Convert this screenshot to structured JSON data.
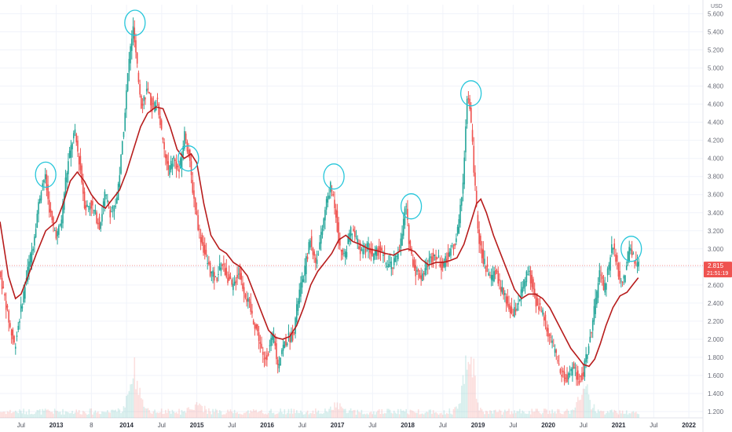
{
  "chart_data": {
    "type": "candlestick",
    "currency": "USD",
    "current_price": "2.815",
    "countdown": "21:51:19",
    "ylim": [
      1.2,
      5.7
    ],
    "xlim": [
      2012.2,
      2022.2
    ],
    "y_ticks": [
      {
        "v": 1.2,
        "label": "1.200"
      },
      {
        "v": 1.4,
        "label": "1.400"
      },
      {
        "v": 1.6,
        "label": "1.600"
      },
      {
        "v": 1.8,
        "label": "1.800"
      },
      {
        "v": 2.0,
        "label": "2.000"
      },
      {
        "v": 2.2,
        "label": "2.200"
      },
      {
        "v": 2.4,
        "label": "2.400"
      },
      {
        "v": 2.6,
        "label": "2.600"
      },
      {
        "v": 2.8,
        "label": "2.800"
      },
      {
        "v": 3.0,
        "label": "3.000"
      },
      {
        "v": 3.2,
        "label": "3.200"
      },
      {
        "v": 3.4,
        "label": "3.400"
      },
      {
        "v": 3.6,
        "label": "3.600"
      },
      {
        "v": 3.8,
        "label": "3.800"
      },
      {
        "v": 4.0,
        "label": "4.000"
      },
      {
        "v": 4.2,
        "label": "4.200"
      },
      {
        "v": 4.4,
        "label": "4.400"
      },
      {
        "v": 4.6,
        "label": "4.600"
      },
      {
        "v": 4.8,
        "label": "4.800"
      },
      {
        "v": 5.0,
        "label": "5.000"
      },
      {
        "v": 5.2,
        "label": "5.200"
      },
      {
        "v": 5.4,
        "label": "5.400"
      },
      {
        "v": 5.6,
        "label": "5.600"
      }
    ],
    "x_ticks": [
      {
        "t": 2012.5,
        "label": "Jul",
        "major": false
      },
      {
        "t": 2013.0,
        "label": "2013",
        "major": true
      },
      {
        "t": 2013.5,
        "label": "8",
        "major": false
      },
      {
        "t": 2014.0,
        "label": "2014",
        "major": true
      },
      {
        "t": 2014.5,
        "label": "Jul",
        "major": false
      },
      {
        "t": 2015.0,
        "label": "2015",
        "major": true
      },
      {
        "t": 2015.5,
        "label": "Jul",
        "major": false
      },
      {
        "t": 2016.0,
        "label": "2016",
        "major": true
      },
      {
        "t": 2016.5,
        "label": "Jul",
        "major": false
      },
      {
        "t": 2017.0,
        "label": "2017",
        "major": true
      },
      {
        "t": 2017.5,
        "label": "Jul",
        "major": false
      },
      {
        "t": 2018.0,
        "label": "2018",
        "major": true
      },
      {
        "t": 2018.5,
        "label": "Jul",
        "major": false
      },
      {
        "t": 2019.0,
        "label": "2019",
        "major": true
      },
      {
        "t": 2019.5,
        "label": "Jul",
        "major": false
      },
      {
        "t": 2020.0,
        "label": "2020",
        "major": true
      },
      {
        "t": 2020.5,
        "label": "Jul",
        "major": false
      },
      {
        "t": 2021.0,
        "label": "2021",
        "major": true
      },
      {
        "t": 2021.5,
        "label": "Jul",
        "major": false
      },
      {
        "t": 2022.0,
        "label": "2022",
        "major": true
      }
    ],
    "price_path": [
      [
        2012.2,
        2.75
      ],
      [
        2012.28,
        2.45
      ],
      [
        2012.36,
        2.1
      ],
      [
        2012.42,
        1.92
      ],
      [
        2012.5,
        2.3
      ],
      [
        2012.6,
        2.75
      ],
      [
        2012.68,
        3.05
      ],
      [
        2012.74,
        3.4
      ],
      [
        2012.8,
        3.7
      ],
      [
        2012.85,
        3.8
      ],
      [
        2012.9,
        3.5
      ],
      [
        2012.96,
        3.25
      ],
      [
        2013.02,
        3.15
      ],
      [
        2013.08,
        3.3
      ],
      [
        2013.14,
        3.75
      ],
      [
        2013.2,
        4.05
      ],
      [
        2013.27,
        4.3
      ],
      [
        2013.35,
        3.9
      ],
      [
        2013.42,
        3.45
      ],
      [
        2013.5,
        3.5
      ],
      [
        2013.58,
        3.35
      ],
      [
        2013.63,
        3.25
      ],
      [
        2013.7,
        3.6
      ],
      [
        2013.78,
        3.4
      ],
      [
        2013.86,
        3.5
      ],
      [
        2013.92,
        3.9
      ],
      [
        2013.98,
        4.45
      ],
      [
        2014.04,
        5.05
      ],
      [
        2014.1,
        5.45
      ],
      [
        2014.16,
        5.0
      ],
      [
        2014.22,
        4.6
      ],
      [
        2014.3,
        4.75
      ],
      [
        2014.38,
        4.55
      ],
      [
        2014.45,
        4.65
      ],
      [
        2014.52,
        4.2
      ],
      [
        2014.6,
        3.85
      ],
      [
        2014.68,
        4.0
      ],
      [
        2014.76,
        3.85
      ],
      [
        2014.84,
        4.3
      ],
      [
        2014.9,
        4.0
      ],
      [
        2014.96,
        3.6
      ],
      [
        2015.04,
        3.2
      ],
      [
        2015.12,
        2.95
      ],
      [
        2015.2,
        2.75
      ],
      [
        2015.28,
        2.65
      ],
      [
        2015.36,
        2.85
      ],
      [
        2015.44,
        2.7
      ],
      [
        2015.52,
        2.55
      ],
      [
        2015.6,
        2.75
      ],
      [
        2015.7,
        2.5
      ],
      [
        2015.8,
        2.25
      ],
      [
        2015.9,
        2.0
      ],
      [
        2015.96,
        1.75
      ],
      [
        2016.02,
        1.85
      ],
      [
        2016.1,
        2.05
      ],
      [
        2016.16,
        1.7
      ],
      [
        2016.22,
        1.9
      ],
      [
        2016.3,
        2.0
      ],
      [
        2016.38,
        2.05
      ],
      [
        2016.46,
        2.5
      ],
      [
        2016.54,
        2.75
      ],
      [
        2016.62,
        3.1
      ],
      [
        2016.7,
        2.85
      ],
      [
        2016.78,
        3.15
      ],
      [
        2016.86,
        3.55
      ],
      [
        2016.92,
        3.7
      ],
      [
        2016.98,
        3.45
      ],
      [
        2017.04,
        3.0
      ],
      [
        2017.12,
        2.95
      ],
      [
        2017.2,
        3.2
      ],
      [
        2017.28,
        3.1
      ],
      [
        2017.36,
        2.95
      ],
      [
        2017.44,
        3.05
      ],
      [
        2017.52,
        2.9
      ],
      [
        2017.6,
        3.0
      ],
      [
        2017.7,
        2.85
      ],
      [
        2017.8,
        2.8
      ],
      [
        2017.86,
        2.95
      ],
      [
        2017.92,
        3.1
      ],
      [
        2017.98,
        3.5
      ],
      [
        2018.04,
        3.0
      ],
      [
        2018.12,
        2.75
      ],
      [
        2018.2,
        2.7
      ],
      [
        2018.3,
        2.85
      ],
      [
        2018.4,
        2.95
      ],
      [
        2018.5,
        2.8
      ],
      [
        2018.6,
        2.95
      ],
      [
        2018.68,
        3.05
      ],
      [
        2018.74,
        3.3
      ],
      [
        2018.8,
        3.8
      ],
      [
        2018.86,
        4.75
      ],
      [
        2018.92,
        4.3
      ],
      [
        2018.98,
        3.5
      ],
      [
        2019.04,
        3.0
      ],
      [
        2019.1,
        2.85
      ],
      [
        2019.18,
        2.65
      ],
      [
        2019.26,
        2.75
      ],
      [
        2019.34,
        2.55
      ],
      [
        2019.42,
        2.4
      ],
      [
        2019.5,
        2.25
      ],
      [
        2019.58,
        2.4
      ],
      [
        2019.66,
        2.6
      ],
      [
        2019.72,
        2.75
      ],
      [
        2019.78,
        2.6
      ],
      [
        2019.84,
        2.4
      ],
      [
        2019.9,
        2.35
      ],
      [
        2019.96,
        2.2
      ],
      [
        2020.04,
        2.0
      ],
      [
        2020.12,
        1.8
      ],
      [
        2020.2,
        1.6
      ],
      [
        2020.28,
        1.55
      ],
      [
        2020.36,
        1.7
      ],
      [
        2020.44,
        1.55
      ],
      [
        2020.5,
        1.6
      ],
      [
        2020.56,
        1.85
      ],
      [
        2020.62,
        2.1
      ],
      [
        2020.68,
        2.4
      ],
      [
        2020.74,
        2.75
      ],
      [
        2020.8,
        2.55
      ],
      [
        2020.86,
        2.75
      ],
      [
        2020.92,
        3.05
      ],
      [
        2020.98,
        2.85
      ],
      [
        2021.04,
        2.6
      ],
      [
        2021.1,
        2.7
      ],
      [
        2021.16,
        3.0
      ],
      [
        2021.2,
        2.95
      ],
      [
        2021.25,
        2.85
      ],
      [
        2021.28,
        2.815
      ]
    ],
    "ma_line": [
      [
        2012.2,
        3.3
      ],
      [
        2012.32,
        2.7
      ],
      [
        2012.42,
        2.45
      ],
      [
        2012.5,
        2.5
      ],
      [
        2012.6,
        2.7
      ],
      [
        2012.72,
        2.95
      ],
      [
        2012.85,
        3.2
      ],
      [
        2013.0,
        3.3
      ],
      [
        2013.1,
        3.5
      ],
      [
        2013.2,
        3.75
      ],
      [
        2013.3,
        3.85
      ],
      [
        2013.4,
        3.75
      ],
      [
        2013.5,
        3.6
      ],
      [
        2013.6,
        3.5
      ],
      [
        2013.7,
        3.45
      ],
      [
        2013.8,
        3.55
      ],
      [
        2013.9,
        3.65
      ],
      [
        2014.0,
        3.85
      ],
      [
        2014.1,
        4.1
      ],
      [
        2014.2,
        4.35
      ],
      [
        2014.3,
        4.5
      ],
      [
        2014.42,
        4.57
      ],
      [
        2014.52,
        4.55
      ],
      [
        2014.62,
        4.35
      ],
      [
        2014.72,
        4.1
      ],
      [
        2014.82,
        4.0
      ],
      [
        2014.92,
        4.05
      ],
      [
        2015.0,
        3.95
      ],
      [
        2015.1,
        3.5
      ],
      [
        2015.2,
        3.15
      ],
      [
        2015.32,
        3.0
      ],
      [
        2015.42,
        2.95
      ],
      [
        2015.52,
        2.85
      ],
      [
        2015.62,
        2.8
      ],
      [
        2015.72,
        2.7
      ],
      [
        2015.82,
        2.5
      ],
      [
        2015.92,
        2.3
      ],
      [
        2016.02,
        2.1
      ],
      [
        2016.12,
        2.02
      ],
      [
        2016.22,
        2.0
      ],
      [
        2016.32,
        2.03
      ],
      [
        2016.42,
        2.15
      ],
      [
        2016.52,
        2.35
      ],
      [
        2016.62,
        2.6
      ],
      [
        2016.72,
        2.75
      ],
      [
        2016.82,
        2.85
      ],
      [
        2016.92,
        2.95
      ],
      [
        2017.02,
        3.1
      ],
      [
        2017.12,
        3.15
      ],
      [
        2017.22,
        3.08
      ],
      [
        2017.32,
        3.05
      ],
      [
        2017.44,
        3.0
      ],
      [
        2017.56,
        2.98
      ],
      [
        2017.68,
        2.95
      ],
      [
        2017.8,
        2.93
      ],
      [
        2017.9,
        2.98
      ],
      [
        2018.0,
        3.0
      ],
      [
        2018.1,
        2.97
      ],
      [
        2018.2,
        2.88
      ],
      [
        2018.3,
        2.82
      ],
      [
        2018.4,
        2.85
      ],
      [
        2018.5,
        2.85
      ],
      [
        2018.6,
        2.87
      ],
      [
        2018.7,
        2.9
      ],
      [
        2018.8,
        3.05
      ],
      [
        2018.9,
        3.3
      ],
      [
        2018.98,
        3.5
      ],
      [
        2019.04,
        3.55
      ],
      [
        2019.12,
        3.4
      ],
      [
        2019.22,
        3.15
      ],
      [
        2019.32,
        2.95
      ],
      [
        2019.42,
        2.75
      ],
      [
        2019.52,
        2.55
      ],
      [
        2019.62,
        2.45
      ],
      [
        2019.72,
        2.5
      ],
      [
        2019.82,
        2.5
      ],
      [
        2019.92,
        2.45
      ],
      [
        2020.02,
        2.35
      ],
      [
        2020.12,
        2.2
      ],
      [
        2020.22,
        2.05
      ],
      [
        2020.32,
        1.9
      ],
      [
        2020.42,
        1.8
      ],
      [
        2020.5,
        1.72
      ],
      [
        2020.58,
        1.7
      ],
      [
        2020.66,
        1.78
      ],
      [
        2020.74,
        1.95
      ],
      [
        2020.82,
        2.15
      ],
      [
        2020.92,
        2.35
      ],
      [
        2021.02,
        2.48
      ],
      [
        2021.12,
        2.52
      ],
      [
        2021.2,
        2.6
      ],
      [
        2021.28,
        2.68
      ]
    ],
    "volume_peaks": [
      [
        2014.1,
        0.45
      ],
      [
        2018.86,
        0.6
      ],
      [
        2020.5,
        0.25
      ],
      [
        2017.0,
        0.08
      ],
      [
        2015.0,
        0.07
      ]
    ],
    "annotations": [
      {
        "t": 2012.85,
        "v": 3.82,
        "type": "circle"
      },
      {
        "t": 2014.12,
        "v": 5.5,
        "type": "circle"
      },
      {
        "t": 2014.88,
        "v": 4.0,
        "type": "circle"
      },
      {
        "t": 2016.95,
        "v": 3.8,
        "type": "circle"
      },
      {
        "t": 2018.05,
        "v": 3.47,
        "type": "circle"
      },
      {
        "t": 2018.9,
        "v": 4.72,
        "type": "circle"
      },
      {
        "t": 2021.18,
        "v": 3.0,
        "type": "circle"
      }
    ],
    "colors": {
      "up": "#26a69a",
      "down": "#ef5350",
      "ma": "#b71c1c",
      "annotation": "#26c6da",
      "price_tag": "#ef5350"
    }
  }
}
